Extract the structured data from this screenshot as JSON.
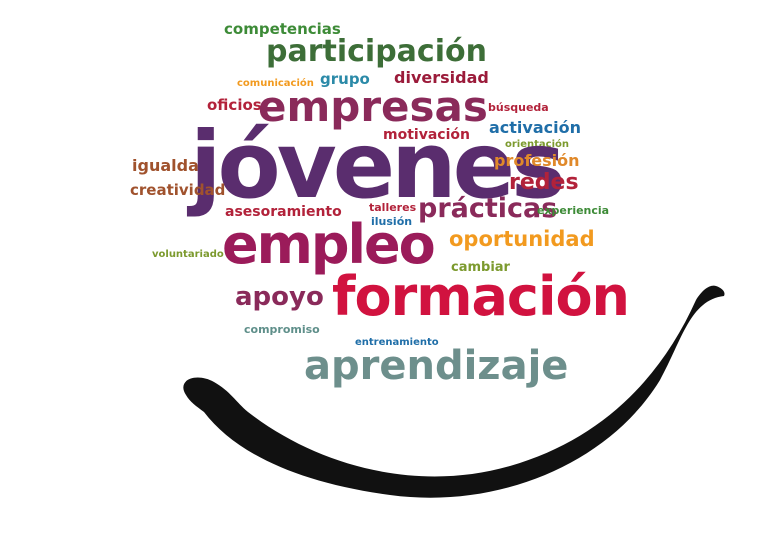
{
  "colors": {
    "purple": "#5a2d6e",
    "magenta": "#9b1b5a",
    "red": "#d1123f",
    "green": "#3d8b37",
    "teal": "#5f8f8a",
    "orange": "#f29a1f",
    "blue": "#1f6ea8",
    "brown": "#a0522d",
    "olive": "#7c9a2e",
    "maroon": "#8a2a3a",
    "gray": "#6d8f8c",
    "smile": "#111111"
  },
  "words": {
    "competencias": "competencias",
    "participacion": "participación",
    "comunicacion": "comunicación",
    "grupo": "grupo",
    "diversidad": "diversidad",
    "oficios": "oficios",
    "empresas": "empresas",
    "busqueda": "búsqueda",
    "activacion": "activación",
    "motivacion": "motivación",
    "orientacion": "orientación",
    "igualdad": "igualdad",
    "jovenes": "jóvenes",
    "profesion": "profesión",
    "creatividad": "creatividad",
    "redes": "redes",
    "asesoramiento": "asesoramiento",
    "talleres": "talleres",
    "practicas": "prácticas",
    "experiencia": "experiencia",
    "ilusion": "ilusión",
    "empleo": "empleo",
    "oportunidad": "oportunidad",
    "voluntariado": "voluntariado",
    "cambiar": "cambiar",
    "apoyo": "apoyo",
    "formacion": "formación",
    "compromiso": "compromiso",
    "entrenamiento": "entrenamiento",
    "aprendizaje": "aprendizaje"
  }
}
